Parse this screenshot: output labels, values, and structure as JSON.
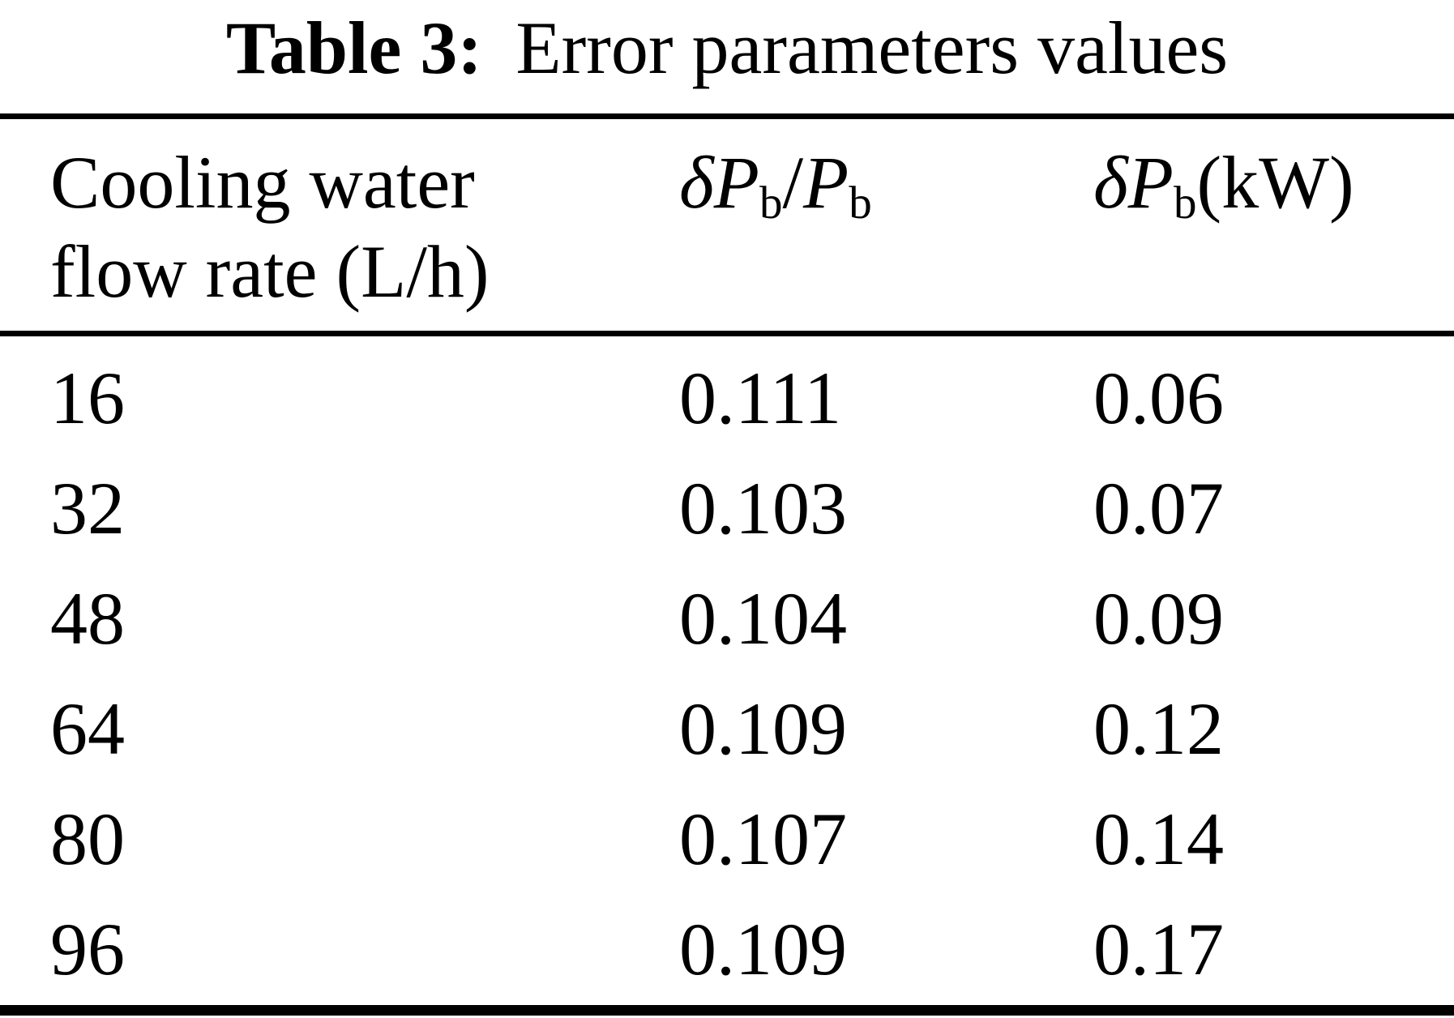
{
  "caption": {
    "label": "Table 3:",
    "text": "Error parameters values"
  },
  "header": {
    "col1_line1": "Cooling water",
    "col1_line2": "flow rate (L/h)",
    "col2": {
      "delta": "δ",
      "p1": "P",
      "sub1": "b",
      "slash": "/",
      "p2": "P",
      "sub2": "b"
    },
    "col3": {
      "delta": "δ",
      "p": "P",
      "sub": "b",
      "unit": "(kW)"
    }
  },
  "rows": [
    {
      "flow": "16",
      "rel": "0.111",
      "abs": "0.06"
    },
    {
      "flow": "32",
      "rel": "0.103",
      "abs": "0.07"
    },
    {
      "flow": "48",
      "rel": "0.104",
      "abs": "0.09"
    },
    {
      "flow": "64",
      "rel": "0.109",
      "abs": "0.12"
    },
    {
      "flow": "80",
      "rel": "0.107",
      "abs": "0.14"
    },
    {
      "flow": "96",
      "rel": "0.109",
      "abs": "0.17"
    }
  ],
  "colors": {
    "text": "#000000",
    "background": "#ffffff",
    "rule": "#000000"
  }
}
